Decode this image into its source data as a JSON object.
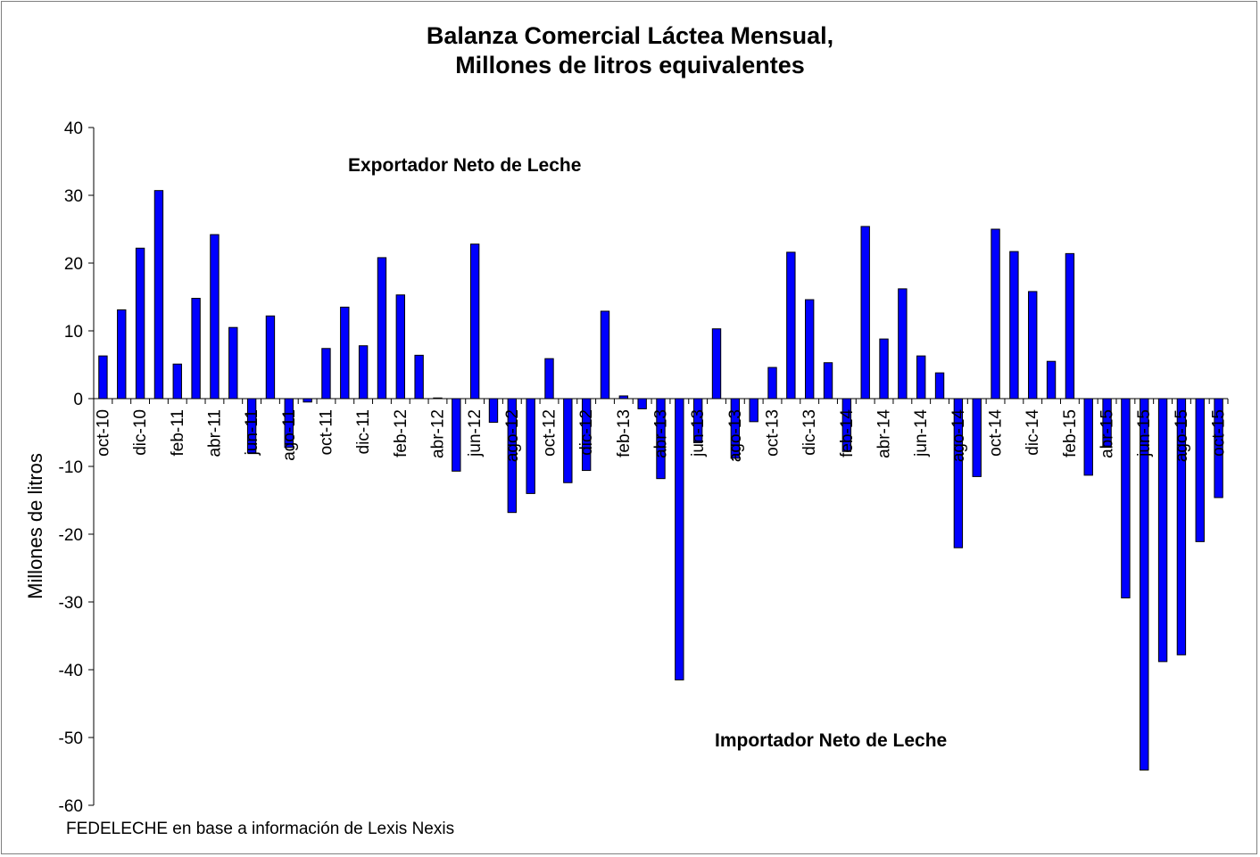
{
  "chart_data": {
    "type": "bar",
    "title_lines": [
      "Balanza Comercial Láctea Mensual,",
      "Millones de litros equivalentes"
    ],
    "xlabel": "",
    "ylabel": "Millones de litros",
    "ylim": [
      -60,
      40
    ],
    "yticks": [
      40,
      30,
      20,
      10,
      0,
      -10,
      -20,
      -30,
      -40,
      -50,
      -60
    ],
    "grid": false,
    "legend": "none",
    "bar_color": "#0000ff",
    "bar_edge_color": "#000000",
    "annotations": [
      {
        "text": "Exportador Neto de Leche"
      },
      {
        "text": "Importador Neto de Leche"
      }
    ],
    "source": "FEDELECHE en base a información de Lexis Nexis",
    "categories": [
      "oct-10",
      "nov-10",
      "dic-10",
      "ene-11",
      "feb-11",
      "mar-11",
      "abr-11",
      "may-11",
      "jun-11",
      "jul-11",
      "ago-11",
      "sep-11",
      "oct-11",
      "nov-11",
      "dic-11",
      "ene-12",
      "feb-12",
      "mar-12",
      "abr-12",
      "may-12",
      "jun-12",
      "jul-12",
      "ago-12",
      "sep-12",
      "oct-12",
      "nov-12",
      "dic-12",
      "ene-13",
      "feb-13",
      "mar-13",
      "abr-13",
      "may-13",
      "jun-13",
      "jul-13",
      "ago-13",
      "sep-13",
      "oct-13",
      "nov-13",
      "dic-13",
      "ene-14",
      "feb-14",
      "mar-14",
      "abr-14",
      "may-14",
      "jun-14",
      "jul-14",
      "ago-14",
      "sep-14",
      "oct-14",
      "nov-14",
      "dic-14",
      "ene-15",
      "feb-15",
      "mar-15",
      "abr-15",
      "may-15",
      "jun-15",
      "jul-15",
      "ago-15",
      "sep-15",
      "oct-15"
    ],
    "tick_labels": [
      "oct-10",
      "dic-10",
      "feb-11",
      "abr-11",
      "jun-11",
      "ago-11",
      "oct-11",
      "dic-11",
      "feb-12",
      "abr-12",
      "jun-12",
      "ago-12",
      "oct-12",
      "dic-12",
      "feb-13",
      "abr-13",
      "jun-13",
      "ago-13",
      "oct-13",
      "dic-13",
      "feb-14",
      "abr-14",
      "jun-14",
      "ago-14",
      "oct-14",
      "dic-14",
      "feb-15",
      "abr-15",
      "jun-15",
      "ago-15",
      "oct-15"
    ],
    "values": [
      6.3,
      13.1,
      22.2,
      30.7,
      5.1,
      14.8,
      24.2,
      10.5,
      -8.0,
      12.2,
      -7.2,
      -0.5,
      7.4,
      13.5,
      7.8,
      20.8,
      15.3,
      6.4,
      0.1,
      -10.7,
      22.8,
      -3.5,
      -16.8,
      -14.0,
      5.9,
      -12.4,
      -10.6,
      12.9,
      0.4,
      -1.5,
      -11.8,
      -41.5,
      -6.5,
      10.3,
      -8.8,
      -3.4,
      4.6,
      21.6,
      14.6,
      5.3,
      -7.8,
      25.4,
      8.8,
      16.2,
      6.3,
      3.8,
      -22.0,
      -11.5,
      25.0,
      21.7,
      15.8,
      5.5,
      21.4,
      -11.3,
      -7.0,
      -29.4,
      -54.8,
      -38.8,
      -37.8,
      -21.1,
      -14.6
    ]
  }
}
